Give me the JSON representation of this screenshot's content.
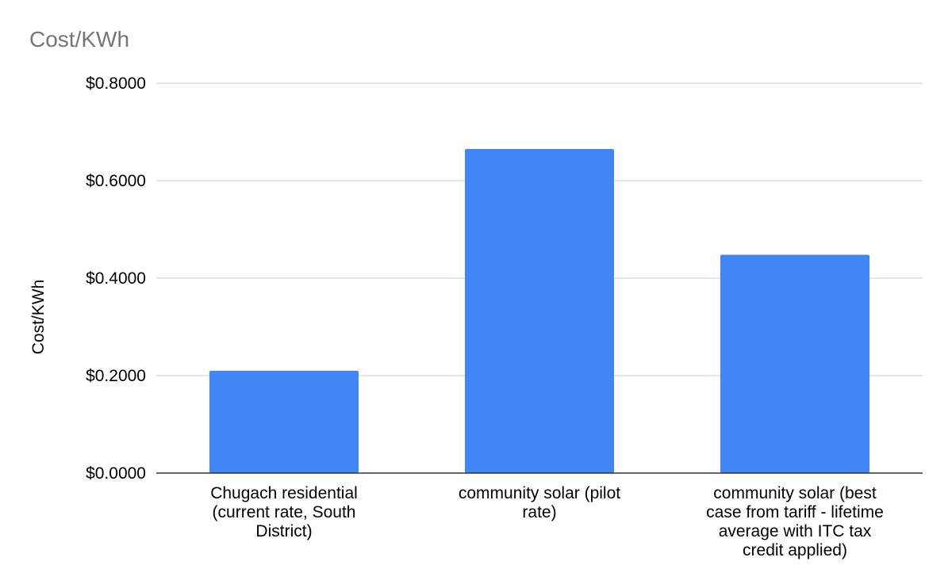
{
  "chart_data": {
    "type": "bar",
    "title": "Cost/KWh",
    "xlabel": "",
    "ylabel": "Cost/KWh",
    "categories": [
      [
        "Chugach residential",
        "(current rate, South",
        "District)"
      ],
      [
        "community solar (pilot",
        "rate)"
      ],
      [
        "community solar (best",
        "case from tariff - lifetime",
        "average with ITC tax",
        "credit applied)"
      ]
    ],
    "values": [
      0.21,
      0.665,
      0.448
    ],
    "ylim": [
      0,
      0.8
    ],
    "yticks": [
      0,
      0.2,
      0.4,
      0.6,
      0.8
    ],
    "ytick_labels": [
      "$0.0000",
      "$0.2000",
      "$0.4000",
      "$0.6000",
      "$0.8000"
    ],
    "grid": true,
    "legend": "none",
    "colors": {
      "bar": "#4285f4",
      "grid": "#cccccc",
      "axis": "#333333",
      "title": "#757575"
    }
  }
}
